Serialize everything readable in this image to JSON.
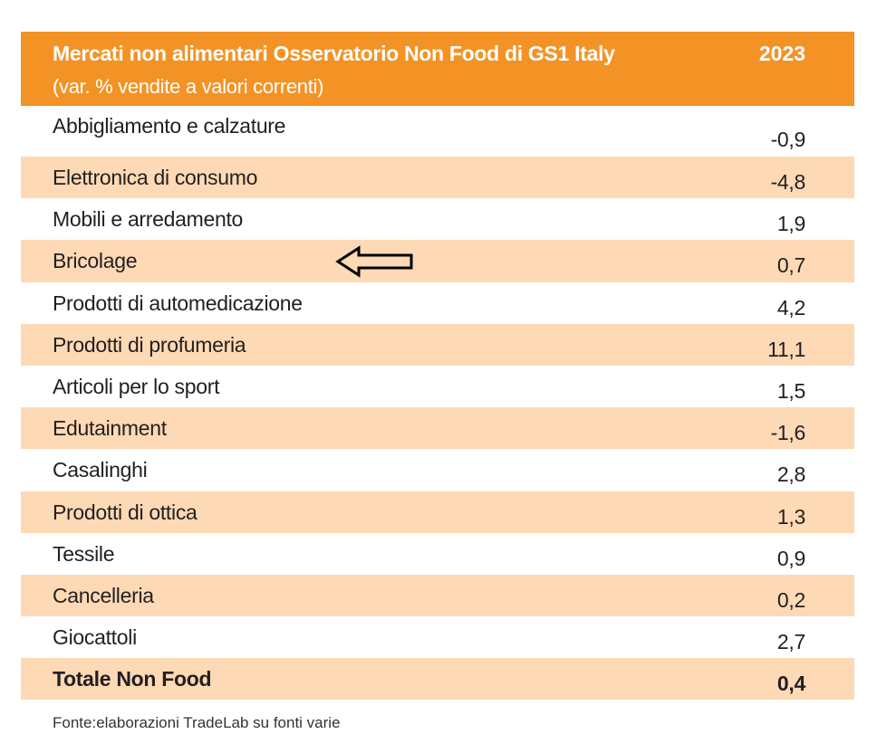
{
  "header": {
    "title": "Mercati non alimentari Osservatorio Non Food  di GS1 Italy",
    "subtitle": "(var. % vendite a valori correnti)",
    "year": "2023"
  },
  "rows": [
    {
      "label": "Abbigliamento e calzature",
      "value": "-0,9"
    },
    {
      "label": "Elettronica di consumo",
      "value": "-4,8"
    },
    {
      "label": "Mobili e arredamento",
      "value": "1,9"
    },
    {
      "label": "Bricolage",
      "value": "0,7"
    },
    {
      "label": "Prodotti di automedicazione",
      "value": "4,2"
    },
    {
      "label": "Prodotti di profumeria",
      "value": "11,1"
    },
    {
      "label": "Articoli per lo sport",
      "value": "1,5"
    },
    {
      "label": "Edutainment",
      "value": "-1,6"
    },
    {
      "label": "Casalinghi",
      "value": "2,8"
    },
    {
      "label": "Prodotti di ottica",
      "value": "1,3"
    },
    {
      "label": "Tessile",
      "value": "0,9"
    },
    {
      "label": "Cancelleria",
      "value": "0,2"
    },
    {
      "label": "Giocattoli",
      "value": "2,7"
    }
  ],
  "total": {
    "label": "Totale Non Food",
    "value": "0,4"
  },
  "source": "Fonte:elaborazioni TradeLab su fonti varie",
  "annotation": {
    "icon": "left-arrow-icon",
    "points_to": "Bricolage"
  },
  "colors": {
    "header_bg": "#f39325",
    "band_bg": "#fdd9b5",
    "header_text": "#ffffff",
    "body_text": "#231f20"
  }
}
